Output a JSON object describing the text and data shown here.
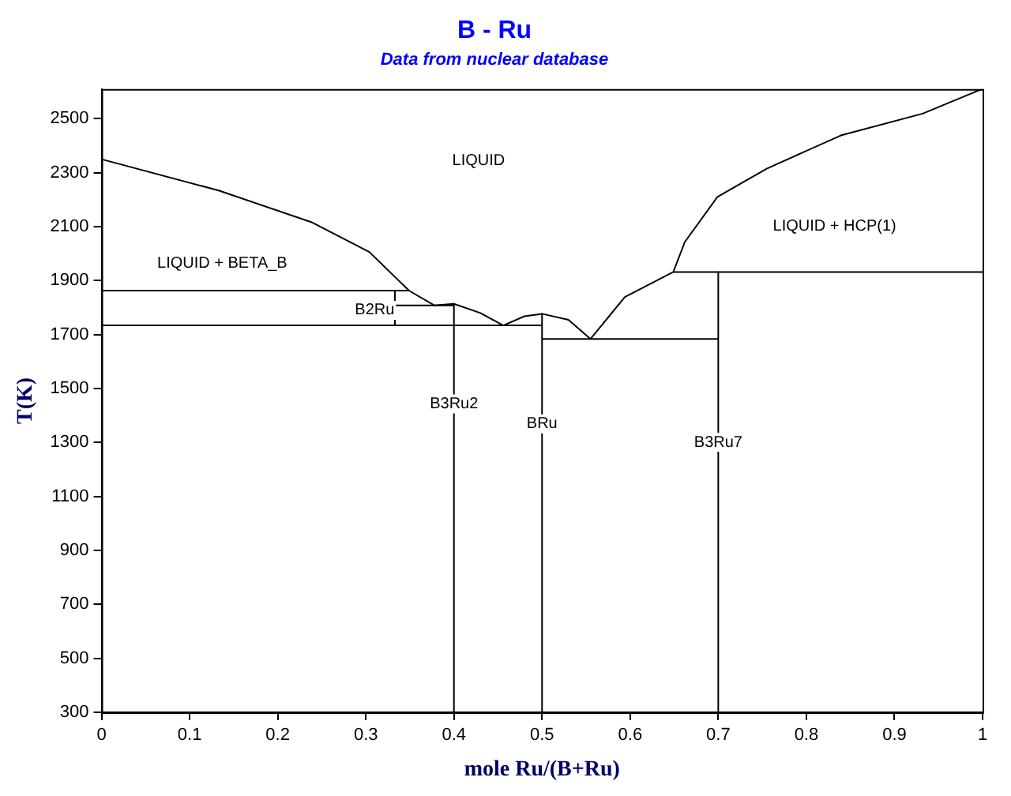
{
  "chart_data": {
    "type": "line",
    "title": "B - Ru",
    "subtitle": "Data from nuclear database",
    "xlabel": "mole Ru/(B+Ru)",
    "ylabel": "T(K)",
    "xlim": [
      0,
      1
    ],
    "xticks": [
      0,
      0.1,
      0.2,
      0.3,
      0.4,
      0.5,
      0.6,
      0.7,
      0.8,
      0.9,
      1
    ],
    "ylim": [
      300,
      2610
    ],
    "yticks": [
      300,
      500,
      700,
      900,
      1100,
      1300,
      1500,
      1700,
      1900,
      2100,
      2300,
      2500
    ],
    "grid": false,
    "legend": false,
    "series": [
      {
        "color": "#000000",
        "x": [
          0,
          0.133,
          0.238,
          0.304,
          0.349,
          0.378,
          0.4,
          0.43,
          0.456,
          0.48,
          0.5,
          0.53,
          0.555,
          0.594,
          0.649,
          0.662,
          0.699,
          0.755,
          0.839,
          0.932,
          0.991,
          1
        ],
        "values": [
          2350,
          2234,
          2117,
          2006,
          1863,
          1808,
          1814,
          1780,
          1734,
          1768,
          1777,
          1755,
          1684,
          1839,
          1932,
          2043,
          2210,
          2315,
          2438,
          2519,
          2599,
          2610
        ]
      },
      {
        "color": "#000000",
        "x": [
          0,
          0.349
        ],
        "values": [
          1863,
          1863
        ]
      },
      {
        "color": "#000000",
        "x": [
          0.333,
          0.333
        ],
        "values": [
          1863,
          1734
        ]
      },
      {
        "color": "#000000",
        "x": [
          0.333,
          0.4
        ],
        "values": [
          1808,
          1808
        ]
      },
      {
        "color": "#000000",
        "x": [
          0,
          0.5
        ],
        "values": [
          1734,
          1734
        ]
      },
      {
        "color": "#000000",
        "x": [
          0.4,
          0.4
        ],
        "values": [
          1814,
          300
        ]
      },
      {
        "color": "#000000",
        "x": [
          0.5,
          0.5
        ],
        "values": [
          1777,
          300
        ]
      },
      {
        "color": "#000000",
        "x": [
          0.5,
          0.7
        ],
        "values": [
          1684,
          1684
        ]
      },
      {
        "color": "#000000",
        "x": [
          0.649,
          1
        ],
        "values": [
          1932,
          1932
        ]
      },
      {
        "color": "#000000",
        "x": [
          0.7,
          0.7
        ],
        "values": [
          1932,
          300
        ]
      }
    ],
    "annotations": [
      "LIQUID",
      "LIQUID + BETA_B",
      "LIQUID + HCP(1)",
      {
        "text": "B2Ru",
        "x": 0.31,
        "y": 1790
      },
      {
        "text": "B3Ru2",
        "x": 0.4,
        "y": 1443
      },
      {
        "text": "BRu",
        "x": 0.5,
        "y": 1369
      },
      {
        "text": "B3Ru7",
        "x": 0.7,
        "y": 1301
      }
    ]
  }
}
